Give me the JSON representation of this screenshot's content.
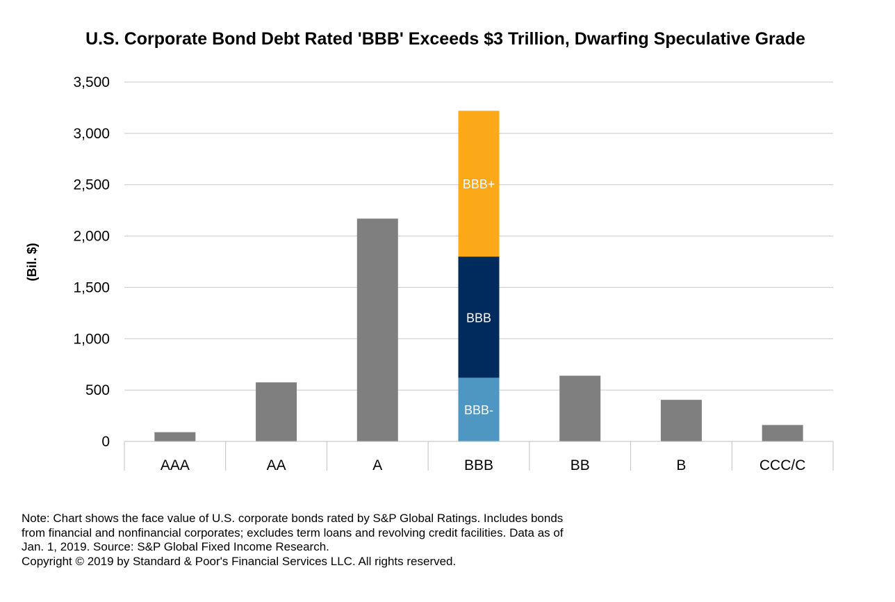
{
  "chart_data": {
    "type": "bar",
    "title": "U.S. Corporate Bond Debt Rated 'BBB' Exceeds $3 Trillion, Dwarfing Speculative Grade",
    "xlabel": "",
    "ylabel": "(Bil. $)",
    "ylim": [
      0,
      3500
    ],
    "yticks": [
      0,
      500,
      1000,
      1500,
      2000,
      2500,
      3000,
      3500
    ],
    "ytick_labels": [
      "0",
      "500",
      "1,000",
      "1,500",
      "2,000",
      "2,500",
      "3,000",
      "3,500"
    ],
    "categories": [
      "AAA",
      "AA",
      "A",
      "BBB",
      "BB",
      "B",
      "CCC/C"
    ],
    "values": [
      90,
      575,
      2170,
      3220,
      640,
      405,
      160
    ],
    "grid": true,
    "legend": "none",
    "bar_color": "#7f7f7f",
    "stacked": {
      "category": "BBB",
      "segments": [
        {
          "label": "BBB-",
          "value": 620,
          "color": "#4f97c3"
        },
        {
          "label": "BBB",
          "value": 1180,
          "color": "#002b5c"
        },
        {
          "label": "BBB+",
          "value": 1420,
          "color": "#fba919"
        }
      ]
    }
  },
  "footnote": {
    "lines": [
      "Note: Chart shows the face value of U.S. corporate bonds rated by S&P Global Ratings. Includes bonds",
      "from financial and nonfinancial corporates; excludes term loans and revolving credit facilities. Data as of",
      "Jan. 1, 2019. Source: S&P Global Fixed Income Research.",
      "Copyright © 2019 by Standard & Poor's Financial Services LLC. All rights reserved."
    ]
  }
}
